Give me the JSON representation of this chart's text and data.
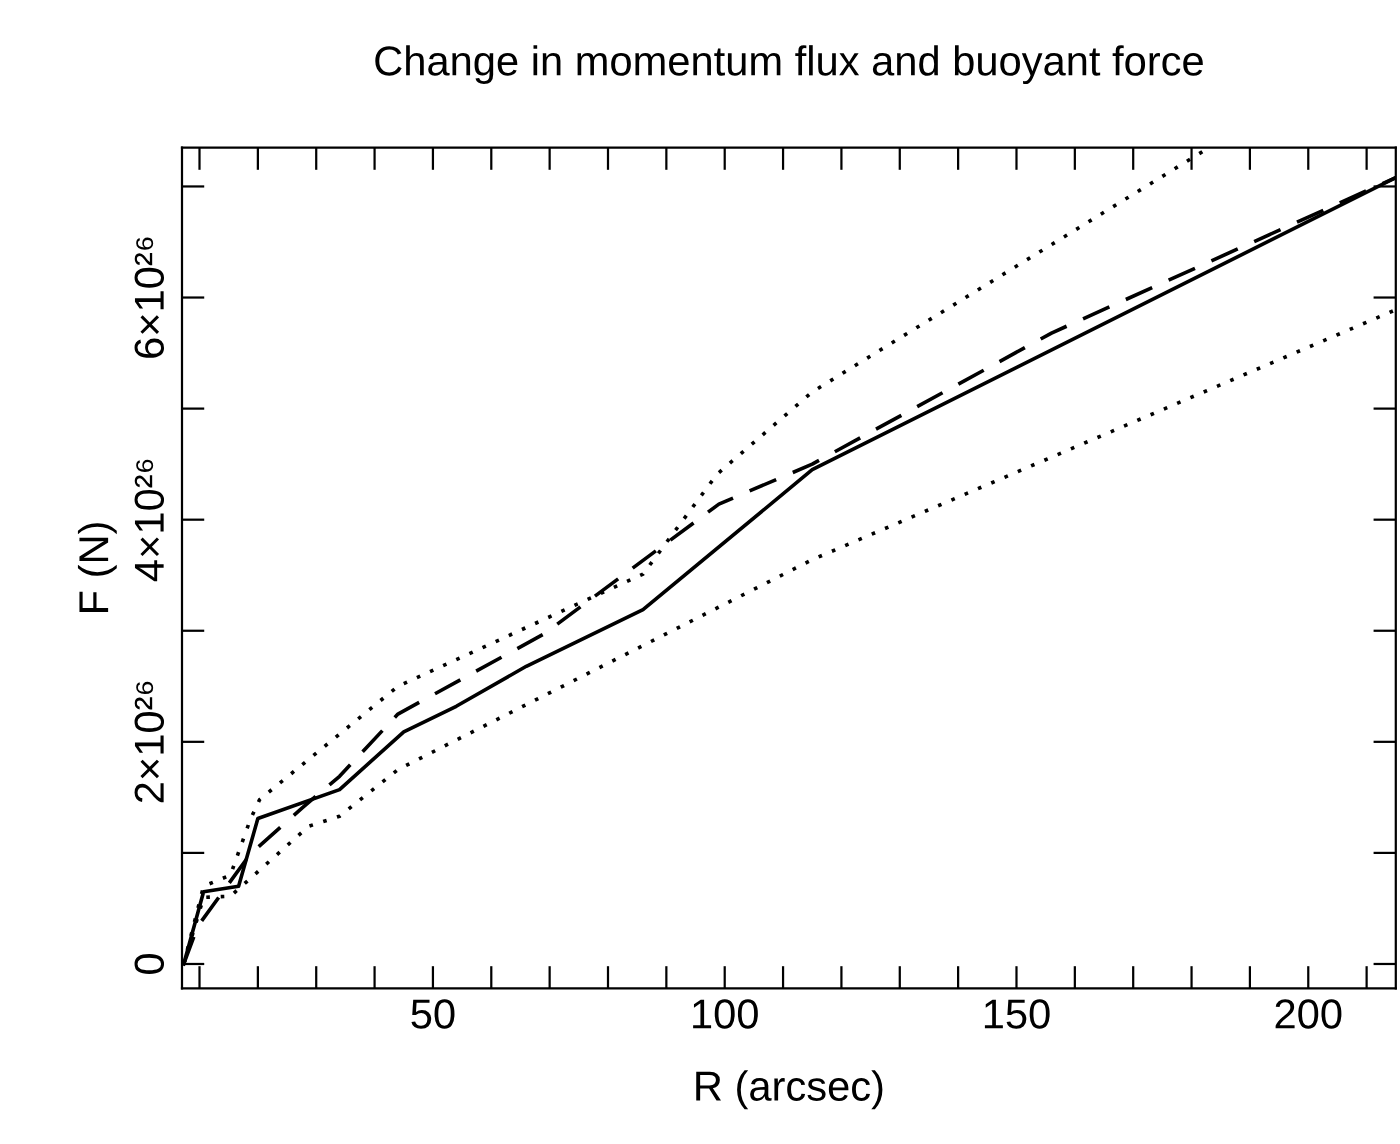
{
  "chart_data": {
    "type": "line",
    "title": "Change in momentum flux and buoyant force",
    "xlabel": "R (arcsec)",
    "ylabel": "F (N)",
    "xlim": [
      7,
      215
    ],
    "ylim": [
      -2.2e+25,
      7.35e+26
    ],
    "xticks": [
      {
        "value": 10,
        "label": null
      },
      {
        "value": 20,
        "label": null
      },
      {
        "value": 30,
        "label": null
      },
      {
        "value": 40,
        "label": null
      },
      50,
      {
        "value": 60,
        "label": null
      },
      {
        "value": 70,
        "label": null
      },
      {
        "value": 80,
        "label": null
      },
      {
        "value": 90,
        "label": null
      },
      100,
      {
        "value": 110,
        "label": null
      },
      {
        "value": 120,
        "label": null
      },
      {
        "value": 130,
        "label": null
      },
      {
        "value": 140,
        "label": null
      },
      150,
      {
        "value": 160,
        "label": null
      },
      {
        "value": 170,
        "label": null
      },
      {
        "value": 180,
        "label": null
      },
      {
        "value": 190,
        "label": null
      },
      200,
      {
        "value": 210,
        "label": null
      }
    ],
    "yticks": [
      {
        "value": 0,
        "label": "0"
      },
      {
        "value": 1e+26,
        "label": null
      },
      {
        "value": 2e+26,
        "label": "2×10²⁶"
      },
      {
        "value": 3e+26,
        "label": null
      },
      {
        "value": 4e+26,
        "label": "4×10²⁶"
      },
      {
        "value": 5e+26,
        "label": null
      },
      {
        "value": 6e+26,
        "label": "6×10²⁶"
      },
      {
        "value": 7e+26,
        "label": null
      }
    ],
    "grid": false,
    "marker": "none",
    "series": [
      {
        "color": "#000000",
        "line_style": "solid",
        "x": [
          7.3,
          10.7,
          16.7,
          20,
          34,
          45,
          54,
          66,
          86,
          115,
          215
        ],
        "values": [
          0,
          6.5e+25,
          7e+25,
          1.31e+26,
          1.57e+26,
          2.09e+26,
          2.32e+26,
          2.68e+26,
          3.19e+26,
          4.45e+26,
          7.08e+26
        ]
      },
      {
        "color": "#000000",
        "line_style": "dashed",
        "x": [
          7.3,
          9.7,
          18.7,
          27.7,
          34,
          44,
          69,
          99,
          115,
          156,
          215
        ],
        "values": [
          0,
          3.4e+25,
          9.9e+25,
          1.41e+26,
          1.69e+26,
          2.25e+26,
          2.97e+26,
          4.14e+26,
          4.5e+26,
          5.68e+26,
          7.08e+26
        ]
      },
      {
        "color": "#000000",
        "line_style": "dotted",
        "x": [
          7.3,
          10.7,
          15.3,
          18.7,
          20.3,
          44,
          86,
          98.7,
          115,
          183
        ],
        "values": [
          0,
          7e+25,
          8e+25,
          1.3e+26,
          1.48e+26,
          2.5e+26,
          3.51e+26,
          4.41e+26,
          5.15e+26,
          7.35e+26
        ]
      },
      {
        "color": "#000000",
        "line_style": "dotted",
        "x": [
          7.3,
          10.7,
          15.3,
          28.7,
          34,
          44,
          88,
          115,
          215
        ],
        "values": [
          0,
          6e+25,
          6.1e+25,
          1.24e+26,
          1.33e+26,
          1.75e+26,
          2.92e+26,
          3.64e+26,
          5.89e+26
        ]
      }
    ]
  }
}
